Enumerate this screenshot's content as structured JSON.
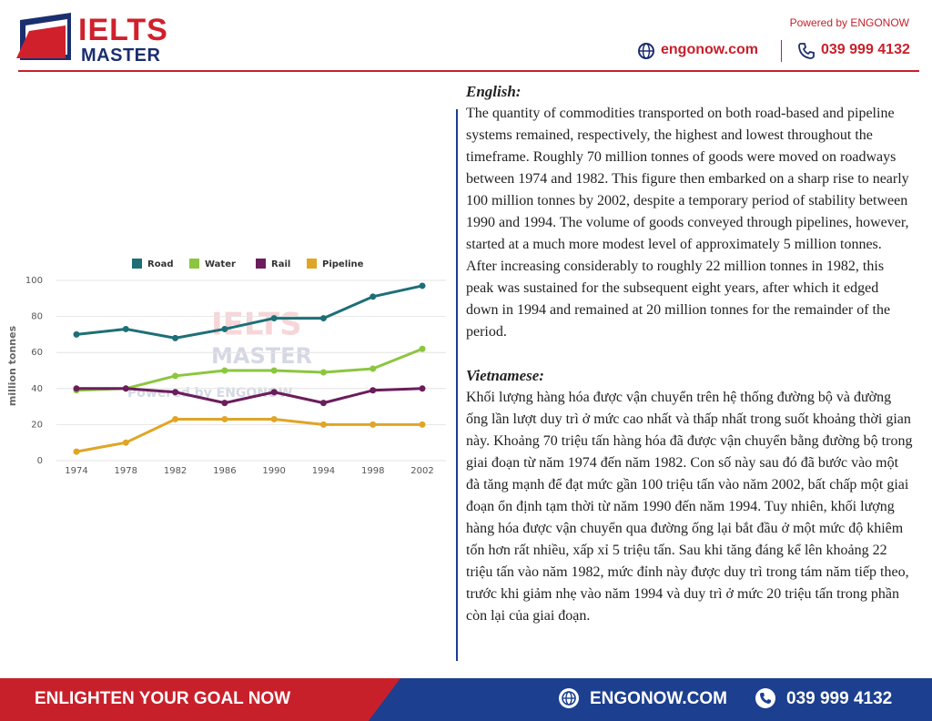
{
  "header": {
    "logo_top": "IELTS",
    "logo_bottom": "MASTER",
    "powered_by": "Powered by ENGONOW",
    "website": "engonow.com",
    "phone": "039 999 4132"
  },
  "chart_data": {
    "type": "line",
    "y_label": "million tonnes",
    "categories": [
      "1974",
      "1978",
      "1982",
      "1986",
      "1990",
      "1994",
      "1998",
      "2002"
    ],
    "series": [
      {
        "name": "Road",
        "color": "#1d6f77",
        "values": [
          70,
          73,
          68,
          73,
          79,
          79,
          91,
          97
        ]
      },
      {
        "name": "Water",
        "color": "#8cc63f",
        "values": [
          39,
          40,
          47,
          50,
          50,
          49,
          51,
          62
        ]
      },
      {
        "name": "Rail",
        "color": "#6b1d5b",
        "values": [
          40,
          40,
          38,
          32,
          38,
          32,
          39,
          40
        ]
      },
      {
        "name": "Pipeline",
        "color": "#e0a526",
        "values": [
          5,
          10,
          23,
          23,
          23,
          20,
          20,
          20
        ]
      }
    ],
    "ylim": [
      0,
      100
    ],
    "yticks": [
      0,
      20,
      40,
      60,
      80,
      100
    ],
    "grid": true,
    "legend": "top",
    "watermark": [
      "IELTS",
      "MASTER",
      "Powered by ENGONOW"
    ]
  },
  "text": {
    "english_heading": "English:",
    "english": "The quantity of commodities transported on both road-based and pipeline systems remained, respectively, the highest and lowest throughout the timeframe. Roughly 70 million tonnes of goods were moved on roadways between 1974 and 1982. This figure then embarked on a sharp rise to nearly 100 million tonnes by 2002, despite a temporary period of stability between 1990 and 1994. The volume of goods conveyed through pipelines, however, started at a much more modest level of approximately 5 million tonnes. After increasing considerably to roughly 22 million tonnes in 1982, this peak was sustained for the subsequent eight years, after which it edged down in 1994 and remained at 20 million tonnes for the remainder of the period.",
    "vietnamese_heading": "Vietnamese:",
    "vietnamese": "Khối lượng hàng hóa được vận chuyển trên hệ thống đường bộ và đường ống lần lượt duy trì ở mức cao nhất và thấp nhất trong suốt khoảng thời gian này. Khoảng 70 triệu tấn hàng hóa đã được vận chuyển bằng đường bộ trong giai đoạn từ năm 1974 đến năm 1982. Con số này sau đó đã bước vào một đà tăng mạnh để đạt mức gần 100 triệu tấn vào năm 2002, bất chấp một giai đoạn ổn định tạm thời từ năm 1990 đến năm 1994. Tuy nhiên, khối lượng hàng hóa được vận chuyển qua đường ống lại bắt đầu ở một mức độ khiêm tốn hơn rất nhiều, xấp xỉ 5 triệu tấn. Sau khi tăng đáng kể lên khoảng 22 triệu tấn vào năm 1982, mức đỉnh này được duy trì trong tám năm tiếp theo, trước khi giảm nhẹ vào năm 1994 và duy trì ở mức 20 triệu tấn trong phần còn lại của giai đoạn."
  },
  "footer": {
    "slogan": "ENLIGHTEN YOUR GOAL NOW",
    "website": "ENGONOW.COM",
    "phone": "039 999 4132"
  }
}
